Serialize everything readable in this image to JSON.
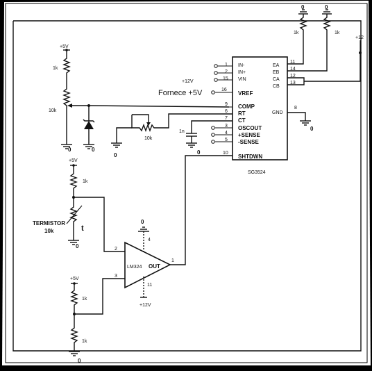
{
  "colors": {
    "background": "#000000",
    "paper": "#ffffff",
    "ink": "#111111"
  },
  "ic": {
    "part": "SG3524",
    "left_pins": [
      {
        "name": "IN-",
        "num": "1"
      },
      {
        "name": "IN+",
        "num": "2"
      },
      {
        "name": "VIN",
        "num": "15"
      },
      {
        "name": "VREF",
        "num": "16"
      },
      {
        "name": "COMP",
        "num": "9"
      },
      {
        "name": "RT",
        "num": "6"
      },
      {
        "name": "CT",
        "num": "7"
      },
      {
        "name": "OSCOUT",
        "num": "3"
      },
      {
        "name": "+SENSE",
        "num": "4"
      },
      {
        "name": "-SENSE",
        "num": "5"
      },
      {
        "name": "SHTDWN",
        "num": "10"
      }
    ],
    "right_pins": [
      {
        "name": "EA",
        "num": "11"
      },
      {
        "name": "EB",
        "num": "14"
      },
      {
        "name": "CA",
        "num": "12"
      },
      {
        "name": "CB",
        "num": "13"
      },
      {
        "name": "GND",
        "num": "8"
      }
    ]
  },
  "opamp": {
    "part": "LM324",
    "out_label": "OUT",
    "pin_inv": "2",
    "pin_noninv": "3",
    "pin_out": "1",
    "pin_top": "4",
    "pin_bottom": "11"
  },
  "labels": {
    "supply_5v": "+5V",
    "supply_12v": "+12V",
    "supply_12v_alt": "+12",
    "vin_supply": "+12V",
    "vref_label": "Fornece +5V",
    "r_1k": "1k",
    "r_10k": "10k",
    "termistor": "TERMISTOR",
    "termistor_value": "10k",
    "termistor_symbol": "t",
    "cap_label": "1n",
    "ground": "0"
  }
}
